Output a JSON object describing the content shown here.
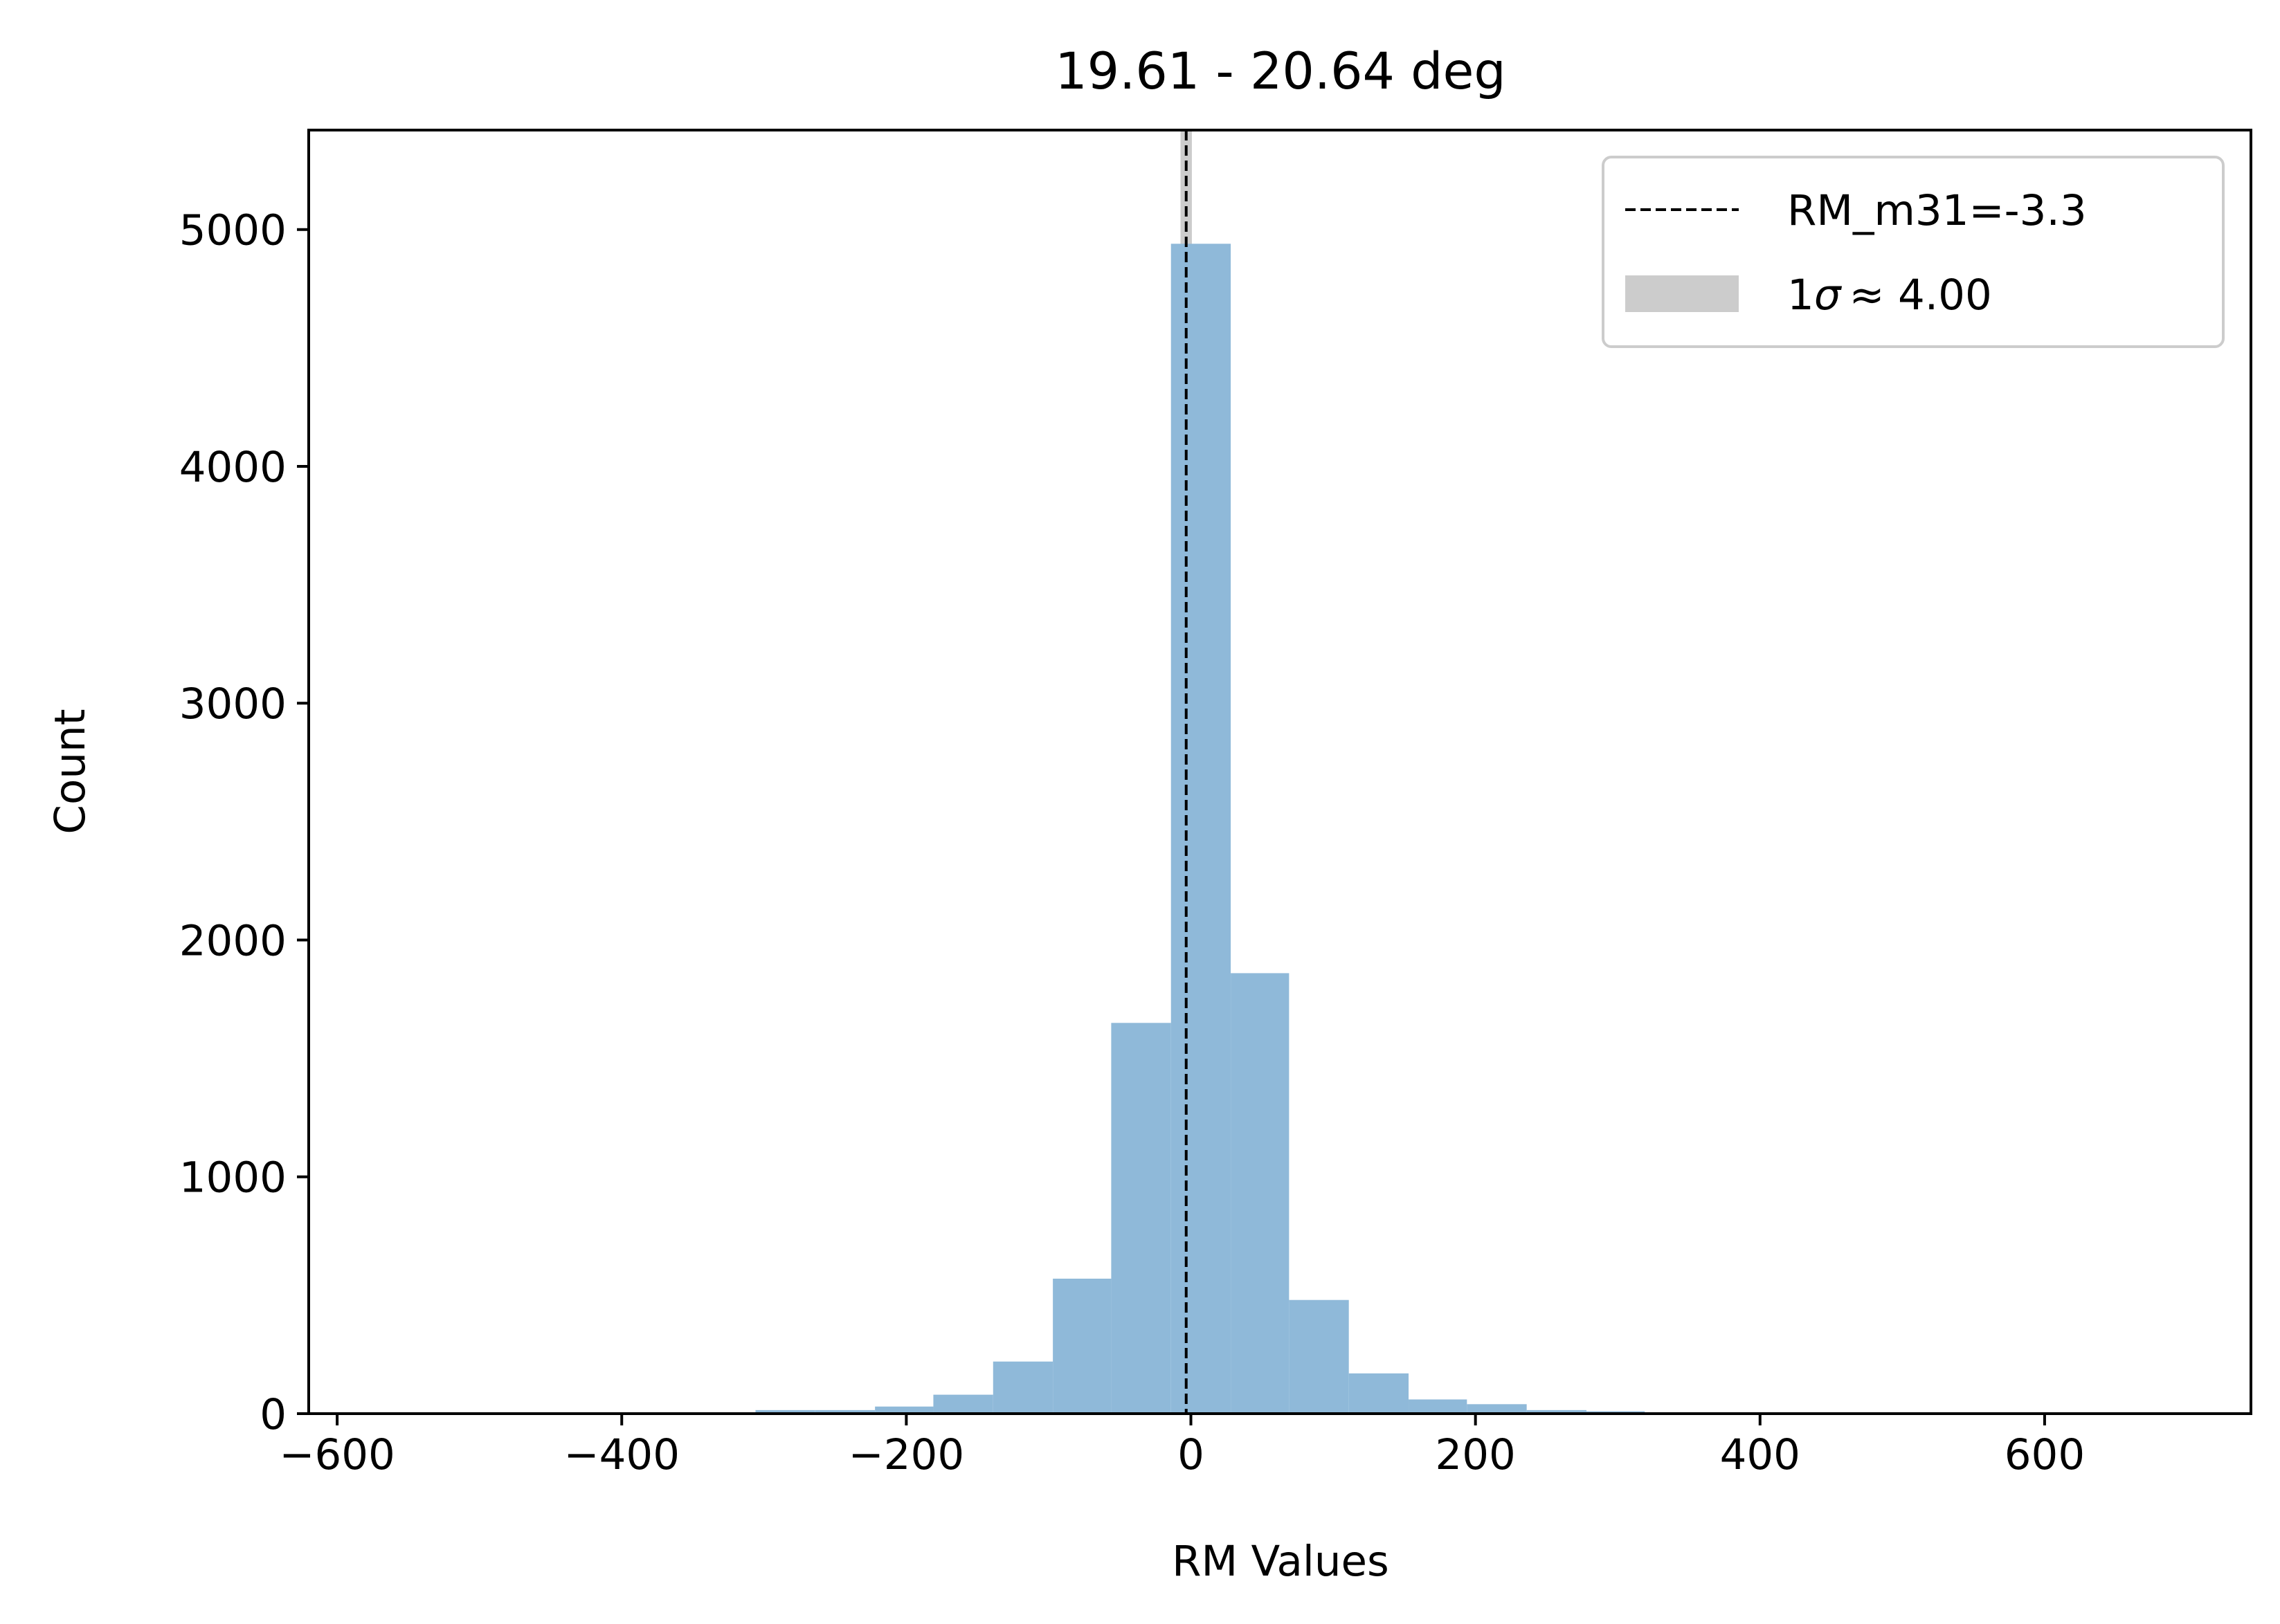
{
  "chart_data": {
    "type": "bar",
    "title": "19.61 - 20.64 deg",
    "xlabel": "RM Values",
    "ylabel": "Count",
    "xlim": [
      -620,
      745
    ],
    "ylim": [
      0,
      5420
    ],
    "x_ticks": [
      -600,
      -400,
      -200,
      0,
      200,
      400,
      600
    ],
    "x_tick_labels": [
      "−600",
      "−400",
      "−200",
      "0",
      "200",
      "400",
      "600"
    ],
    "y_ticks": [
      0,
      1000,
      2000,
      3000,
      4000,
      5000
    ],
    "y_tick_labels": [
      "0",
      "1000",
      "2000",
      "3000",
      "4000",
      "5000"
    ],
    "grid": false,
    "legend_position": "top-right",
    "bar_color": "#8fb9d9",
    "histogram": {
      "bin_edges": [
        -598,
        -556,
        -514,
        -472,
        -431,
        -389,
        -347,
        -306,
        -264,
        -222,
        -181,
        -139,
        -97,
        -56,
        -14,
        28,
        69,
        111,
        153,
        194,
        236,
        278,
        319,
        361,
        403,
        444,
        486,
        528,
        569,
        611,
        653,
        695
      ],
      "counts": [
        0,
        0,
        0,
        0,
        0,
        0,
        0,
        15,
        15,
        30,
        80,
        220,
        570,
        1650,
        4940,
        1860,
        480,
        170,
        60,
        40,
        15,
        10,
        0,
        0,
        0,
        0,
        0,
        0,
        0,
        0,
        0
      ]
    },
    "reference_line": {
      "value": -3.3,
      "style": "dashed",
      "color": "#000000",
      "legend_label": "RM_m31=-3.3"
    },
    "sigma_band": {
      "center": -3.3,
      "half_width": 4.0,
      "color": "#cccccc",
      "legend_prefix": "1",
      "legend_sigma": "σ",
      "legend_rest": "≈ 4.00"
    }
  }
}
